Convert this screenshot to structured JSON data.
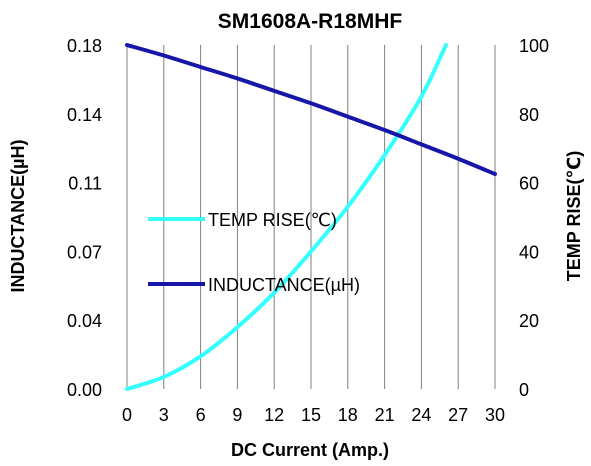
{
  "chart_data": {
    "type": "line",
    "title": "SM1608A-R18MHF",
    "xlabel": "DC Current (Amp.)",
    "ylabel_left": "INDUCTANCE(µH)",
    "ylabel_right": "TEMP RISE(℃)",
    "xlim": [
      0,
      30
    ],
    "ylim_left": [
      0,
      0.18
    ],
    "ylim_right": [
      0,
      100
    ],
    "x_ticks": [
      "0",
      "3",
      "6",
      "9",
      "12",
      "15",
      "18",
      "21",
      "24",
      "27",
      "30"
    ],
    "y_left_ticks": [
      "0.00",
      "0.04",
      "0.07",
      "0.11",
      "0.14",
      "0.18"
    ],
    "y_right_ticks": [
      "0",
      "20",
      "40",
      "60",
      "80",
      "100"
    ],
    "grid": "vertical",
    "legend_position": "center-left",
    "series": [
      {
        "name": "TEMP RISE(℃)",
        "axis": "right",
        "color": "#33FFFF",
        "x": [
          0,
          3,
          6,
          9,
          12,
          15,
          18,
          21,
          24,
          26
        ],
        "y": [
          0,
          3.5,
          9.5,
          18,
          28,
          40,
          53,
          68,
          85,
          100
        ]
      },
      {
        "name": "INDUCTANCE(µH)",
        "axis": "left",
        "color": "#1616A8",
        "x": [
          0,
          3,
          6,
          9,
          12,
          15,
          18,
          21,
          24,
          27,
          30
        ],
        "y": [
          0.18,
          0.1745,
          0.1685,
          0.1625,
          0.156,
          0.1495,
          0.1425,
          0.1355,
          0.128,
          0.1205,
          0.1125
        ]
      }
    ]
  }
}
